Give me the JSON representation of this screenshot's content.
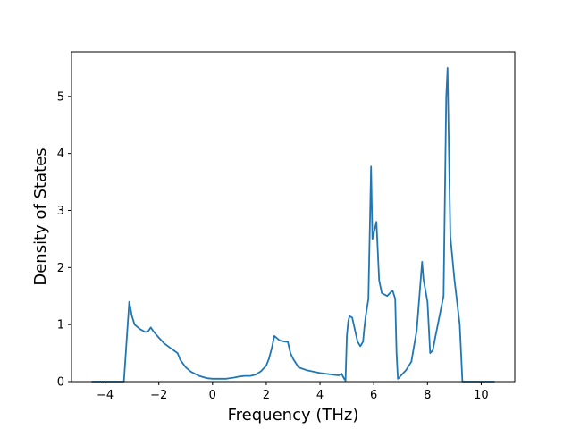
{
  "chart_data": {
    "type": "line",
    "xlabel": "Frequency (THz)",
    "ylabel": "Density of States",
    "xlim": [
      -5.25,
      11.25
    ],
    "ylim": [
      0,
      5.78
    ],
    "xticks": [
      -4,
      -2,
      0,
      2,
      4,
      6,
      8,
      10
    ],
    "yticks": [
      0,
      1,
      2,
      3,
      4,
      5
    ],
    "grid": false,
    "series": [
      {
        "color": "#1f77b4",
        "x": [
          -4.5,
          -3.3,
          -3.1,
          -3.0,
          -2.9,
          -2.7,
          -2.5,
          -2.4,
          -2.3,
          -2.2,
          -2.0,
          -1.8,
          -1.6,
          -1.3,
          -1.2,
          -1.0,
          -0.8,
          -0.5,
          -0.2,
          0.0,
          0.5,
          0.8,
          1.0,
          1.2,
          1.4,
          1.6,
          1.8,
          2.0,
          2.1,
          2.2,
          2.3,
          2.5,
          2.7,
          2.8,
          2.9,
          3.0,
          3.2,
          3.5,
          4.0,
          4.5,
          4.7,
          4.8,
          4.9,
          4.95,
          5.0,
          5.05,
          5.1,
          5.2,
          5.4,
          5.5,
          5.6,
          5.65,
          5.7,
          5.8,
          5.9,
          5.95,
          6.0,
          6.1,
          6.2,
          6.3,
          6.5,
          6.6,
          6.7,
          6.8,
          6.85,
          6.9,
          6.95,
          7.0,
          7.2,
          7.4,
          7.6,
          7.8,
          7.85,
          8.0,
          8.1,
          8.2,
          8.3,
          8.6,
          8.7,
          8.75,
          8.85,
          9.0,
          9.2,
          9.3,
          10.5
        ],
        "y": [
          0.0,
          0.0,
          1.4,
          1.15,
          1.0,
          0.92,
          0.87,
          0.88,
          0.95,
          0.88,
          0.77,
          0.67,
          0.6,
          0.5,
          0.38,
          0.25,
          0.17,
          0.1,
          0.06,
          0.05,
          0.05,
          0.07,
          0.09,
          0.1,
          0.1,
          0.12,
          0.18,
          0.28,
          0.4,
          0.58,
          0.8,
          0.72,
          0.7,
          0.7,
          0.5,
          0.4,
          0.25,
          0.2,
          0.15,
          0.12,
          0.11,
          0.14,
          0.05,
          0.02,
          0.8,
          1.05,
          1.15,
          1.12,
          0.7,
          0.62,
          0.7,
          0.95,
          1.15,
          1.45,
          3.77,
          2.5,
          2.6,
          2.8,
          1.78,
          1.55,
          1.5,
          1.55,
          1.6,
          1.45,
          0.5,
          0.05,
          0.07,
          0.1,
          0.2,
          0.35,
          0.9,
          2.1,
          1.8,
          1.4,
          0.5,
          0.55,
          0.8,
          1.5,
          5.0,
          5.5,
          2.55,
          1.8,
          1.0,
          0.0,
          0.0
        ]
      }
    ]
  }
}
